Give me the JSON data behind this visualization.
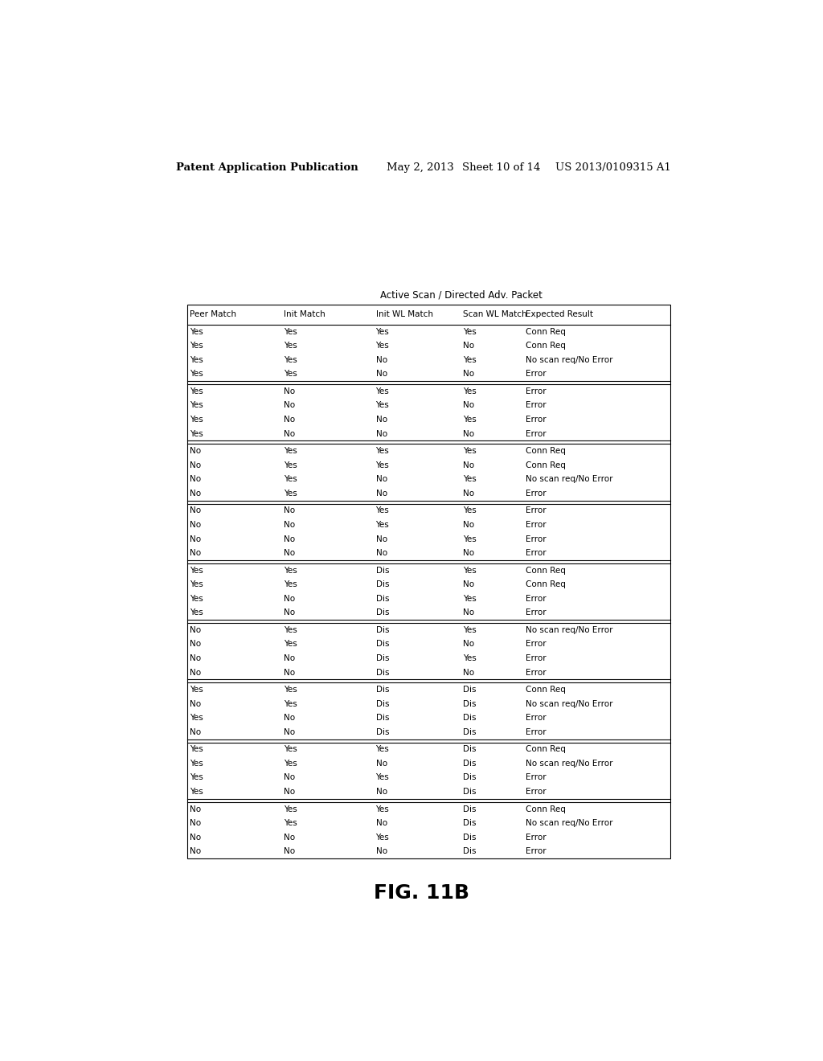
{
  "title_text": "Active Scan / Directed Adv. Packet",
  "fig_label": "FIG. 11B",
  "patent_header": "Patent Application Publication",
  "patent_date": "May 2, 2013",
  "patent_sheet": "Sheet 10 of 14",
  "patent_num": "US 2013/0109315 A1",
  "columns": [
    "Peer Match",
    "Init Match",
    "Init WL Match",
    "Scan WL Match",
    "Expected Result"
  ],
  "groups": [
    {
      "rows": [
        [
          "Yes",
          "Yes",
          "Yes",
          "Yes",
          "Conn Req"
        ],
        [
          "Yes",
          "Yes",
          "Yes",
          "No",
          "Conn Req"
        ],
        [
          "Yes",
          "Yes",
          "No",
          "Yes",
          "No scan req/No Error"
        ],
        [
          "Yes",
          "Yes",
          "No",
          "No",
          "Error"
        ]
      ]
    },
    {
      "rows": [
        [
          "Yes",
          "No",
          "Yes",
          "Yes",
          "Error"
        ],
        [
          "Yes",
          "No",
          "Yes",
          "No",
          "Error"
        ],
        [
          "Yes",
          "No",
          "No",
          "Yes",
          "Error"
        ],
        [
          "Yes",
          "No",
          "No",
          "No",
          "Error"
        ]
      ]
    },
    {
      "rows": [
        [
          "No",
          "Yes",
          "Yes",
          "Yes",
          "Conn Req"
        ],
        [
          "No",
          "Yes",
          "Yes",
          "No",
          "Conn Req"
        ],
        [
          "No",
          "Yes",
          "No",
          "Yes",
          "No scan req/No Error"
        ],
        [
          "No",
          "Yes",
          "No",
          "No",
          "Error"
        ]
      ]
    },
    {
      "rows": [
        [
          "No",
          "No",
          "Yes",
          "Yes",
          "Error"
        ],
        [
          "No",
          "No",
          "Yes",
          "No",
          "Error"
        ],
        [
          "No",
          "No",
          "No",
          "Yes",
          "Error"
        ],
        [
          "No",
          "No",
          "No",
          "No",
          "Error"
        ]
      ]
    },
    {
      "rows": [
        [
          "Yes",
          "Yes",
          "Dis",
          "Yes",
          "Conn Req"
        ],
        [
          "Yes",
          "Yes",
          "Dis",
          "No",
          "Conn Req"
        ],
        [
          "Yes",
          "No",
          "Dis",
          "Yes",
          "Error"
        ],
        [
          "Yes",
          "No",
          "Dis",
          "No",
          "Error"
        ]
      ]
    },
    {
      "rows": [
        [
          "No",
          "Yes",
          "Dis",
          "Yes",
          "No scan req/No Error"
        ],
        [
          "No",
          "Yes",
          "Dis",
          "No",
          "Error"
        ],
        [
          "No",
          "No",
          "Dis",
          "Yes",
          "Error"
        ],
        [
          "No",
          "No",
          "Dis",
          "No",
          "Error"
        ]
      ]
    },
    {
      "rows": [
        [
          "Yes",
          "Yes",
          "Dis",
          "Dis",
          "Conn Req"
        ],
        [
          "No",
          "Yes",
          "Dis",
          "Dis",
          "No scan req/No Error"
        ],
        [
          "Yes",
          "No",
          "Dis",
          "Dis",
          "Error"
        ],
        [
          "No",
          "No",
          "Dis",
          "Dis",
          "Error"
        ]
      ]
    },
    {
      "rows": [
        [
          "Yes",
          "Yes",
          "Yes",
          "Dis",
          "Conn Req"
        ],
        [
          "Yes",
          "Yes",
          "No",
          "Dis",
          "No scan req/No Error"
        ],
        [
          "Yes",
          "No",
          "Yes",
          "Dis",
          "Error"
        ],
        [
          "Yes",
          "No",
          "No",
          "Dis",
          "Error"
        ]
      ]
    },
    {
      "rows": [
        [
          "No",
          "Yes",
          "Yes",
          "Dis",
          "Conn Req"
        ],
        [
          "No",
          "Yes",
          "No",
          "Dis",
          "No scan req/No Error"
        ],
        [
          "No",
          "No",
          "Yes",
          "Dis",
          "Error"
        ],
        [
          "No",
          "No",
          "No",
          "Dis",
          "Error"
        ]
      ]
    }
  ],
  "bg_color": "#ffffff",
  "text_color": "#000000",
  "font_size": 7.5,
  "header_font_size": 7.5,
  "title_font_size": 8.5,
  "fig_label_font_size": 18,
  "patent_font_size": 9.5
}
